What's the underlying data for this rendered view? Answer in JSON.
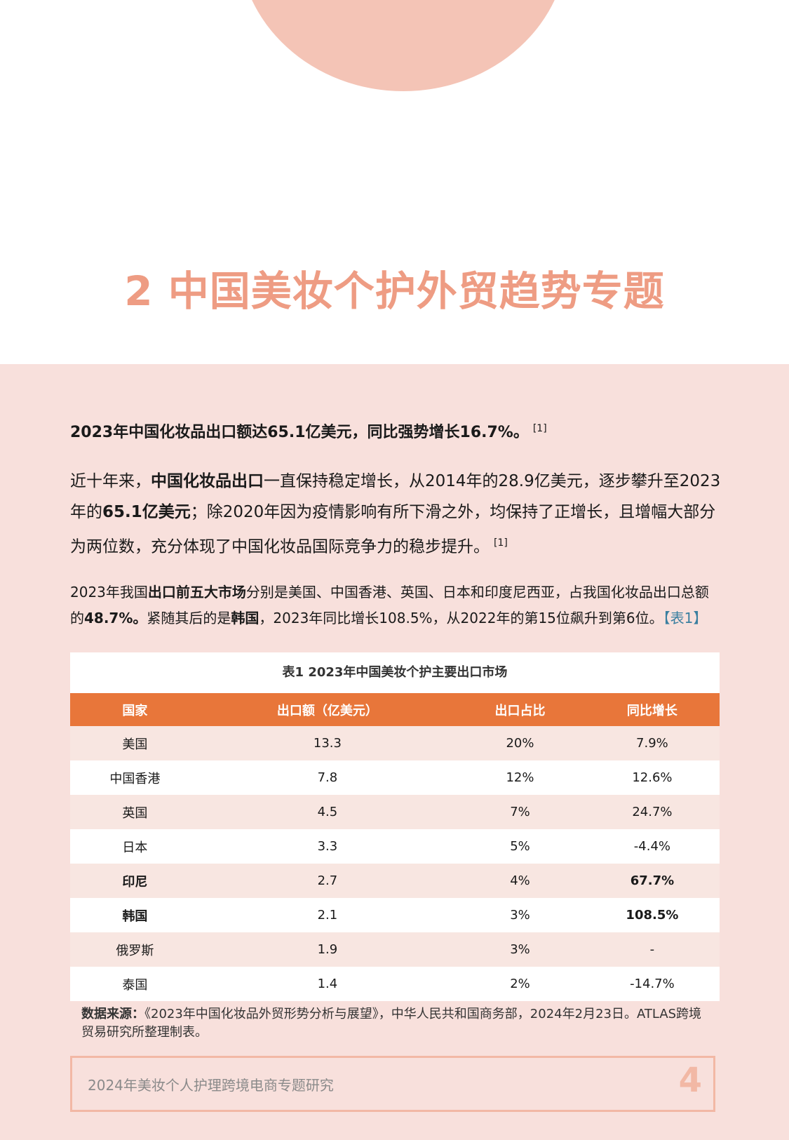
{
  "section": {
    "title": "2 中国美妆个护外贸趋势专题"
  },
  "lead": {
    "text": "2023年中国化妆品出口额达65.1亿美元，同比强势增长16.7%。",
    "ref": "[1]"
  },
  "para1": {
    "t1": "近十年来，",
    "b1": "中国化妆品出口",
    "t2": "一直保持稳定增长，从2014年的28.9亿美元，逐步攀升至2023年的",
    "b2": "65.1亿美元",
    "t3": "；除2020年因为疫情影响有所下滑之外，均保持了正增长，且增幅大部分为两位数，充分体现了中国化妆品国际竞争力的稳步提升。",
    "ref": "[1]"
  },
  "para2": {
    "t1": "2023年我国",
    "b1": "出口前五大市场",
    "t2": "分别是美国、中国香港、英国、日本和印度尼西亚，占我国化妆品出口总额的",
    "b2": "48.7%。",
    "t3": "紧随其后的是",
    "b3": "韩国",
    "t4": "，2023年同比增长108.5%，从2022年的第15位飙升到第6位。",
    "link": "【表1】"
  },
  "table": {
    "caption": "表1 2023年中国美妆个护主要出口市场",
    "headers": [
      "国家",
      "出口额（亿美元）",
      "出口占比",
      "同比增长"
    ],
    "rows": [
      {
        "country": "美国",
        "export": "13.3",
        "share": "20%",
        "growth": "7.9%"
      },
      {
        "country": "中国香港",
        "export": "7.8",
        "share": "12%",
        "growth": "12.6%"
      },
      {
        "country": "英国",
        "export": "4.5",
        "share": "7%",
        "growth": "24.7%"
      },
      {
        "country": "日本",
        "export": "3.3",
        "share": "5%",
        "growth": "-4.4%"
      },
      {
        "country": "印尼",
        "export": "2.7",
        "share": "4%",
        "growth": "67.7%"
      },
      {
        "country": "韩国",
        "export": "2.1",
        "share": "3%",
        "growth": "108.5%"
      },
      {
        "country": "俄罗斯",
        "export": "1.9",
        "share": "3%",
        "growth": "-"
      },
      {
        "country": "泰国",
        "export": "1.4",
        "share": "2%",
        "growth": "-14.7%"
      }
    ]
  },
  "source": {
    "label": "数据来源：",
    "text": "《2023年中国化妆品外贸形势分析与展望》，中华人民共和国商务部，2024年2月23日。ATLAS跨境贸易研究所整理制表。"
  },
  "footer": {
    "text": "2024年美妆个人护理跨境电商专题研究",
    "page": "4"
  }
}
